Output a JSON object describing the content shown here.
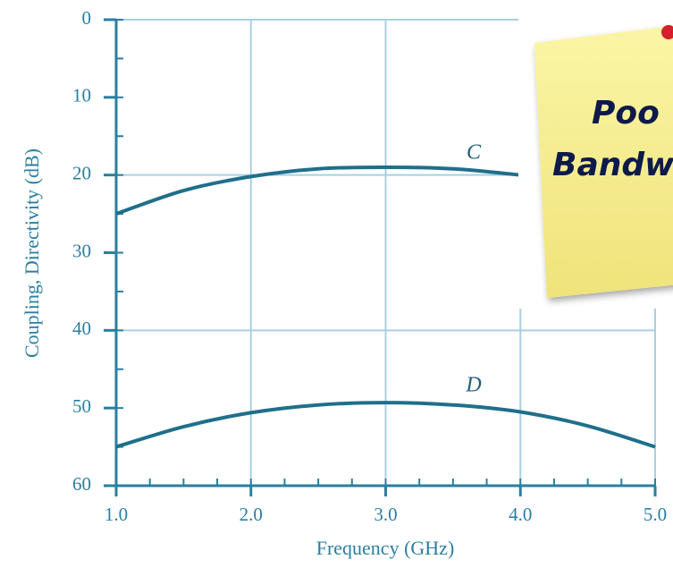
{
  "chart_data": {
    "type": "line",
    "xlabel": "Frequency (GHz)",
    "ylabel": "Coupling, Directivity (dB)",
    "xlim": [
      1,
      5
    ],
    "xticks": [
      {
        "value": 1,
        "label": "1.0"
      },
      {
        "value": 2,
        "label": "2.0"
      },
      {
        "value": 3,
        "label": "3.0"
      },
      {
        "value": 4,
        "label": "4.0"
      },
      {
        "value": 5,
        "label": "5.0"
      }
    ],
    "ylim": [
      60,
      0
    ],
    "yticks": [
      0,
      10,
      20,
      30,
      40,
      50,
      60
    ],
    "x_minor_step": 0.25,
    "y_minor_step": 5,
    "ygrid_step": 20,
    "grid": true,
    "series": [
      {
        "name": "C",
        "color": "#1f6f8b",
        "x": [
          1,
          1.5,
          2,
          2.5,
          3,
          3.5,
          4
        ],
        "values": [
          25,
          22,
          20.2,
          19.2,
          19,
          19.2,
          20
        ]
      },
      {
        "name": "D",
        "color": "#1f6f8b",
        "x": [
          1,
          1.5,
          2,
          2.5,
          3,
          3.5,
          4,
          4.5,
          5
        ],
        "values": [
          55,
          52.4,
          50.6,
          49.6,
          49.3,
          49.6,
          50.5,
          52.3,
          55
        ]
      }
    ],
    "note": {
      "lines": [
        "Poo",
        "Bandw"
      ]
    }
  }
}
